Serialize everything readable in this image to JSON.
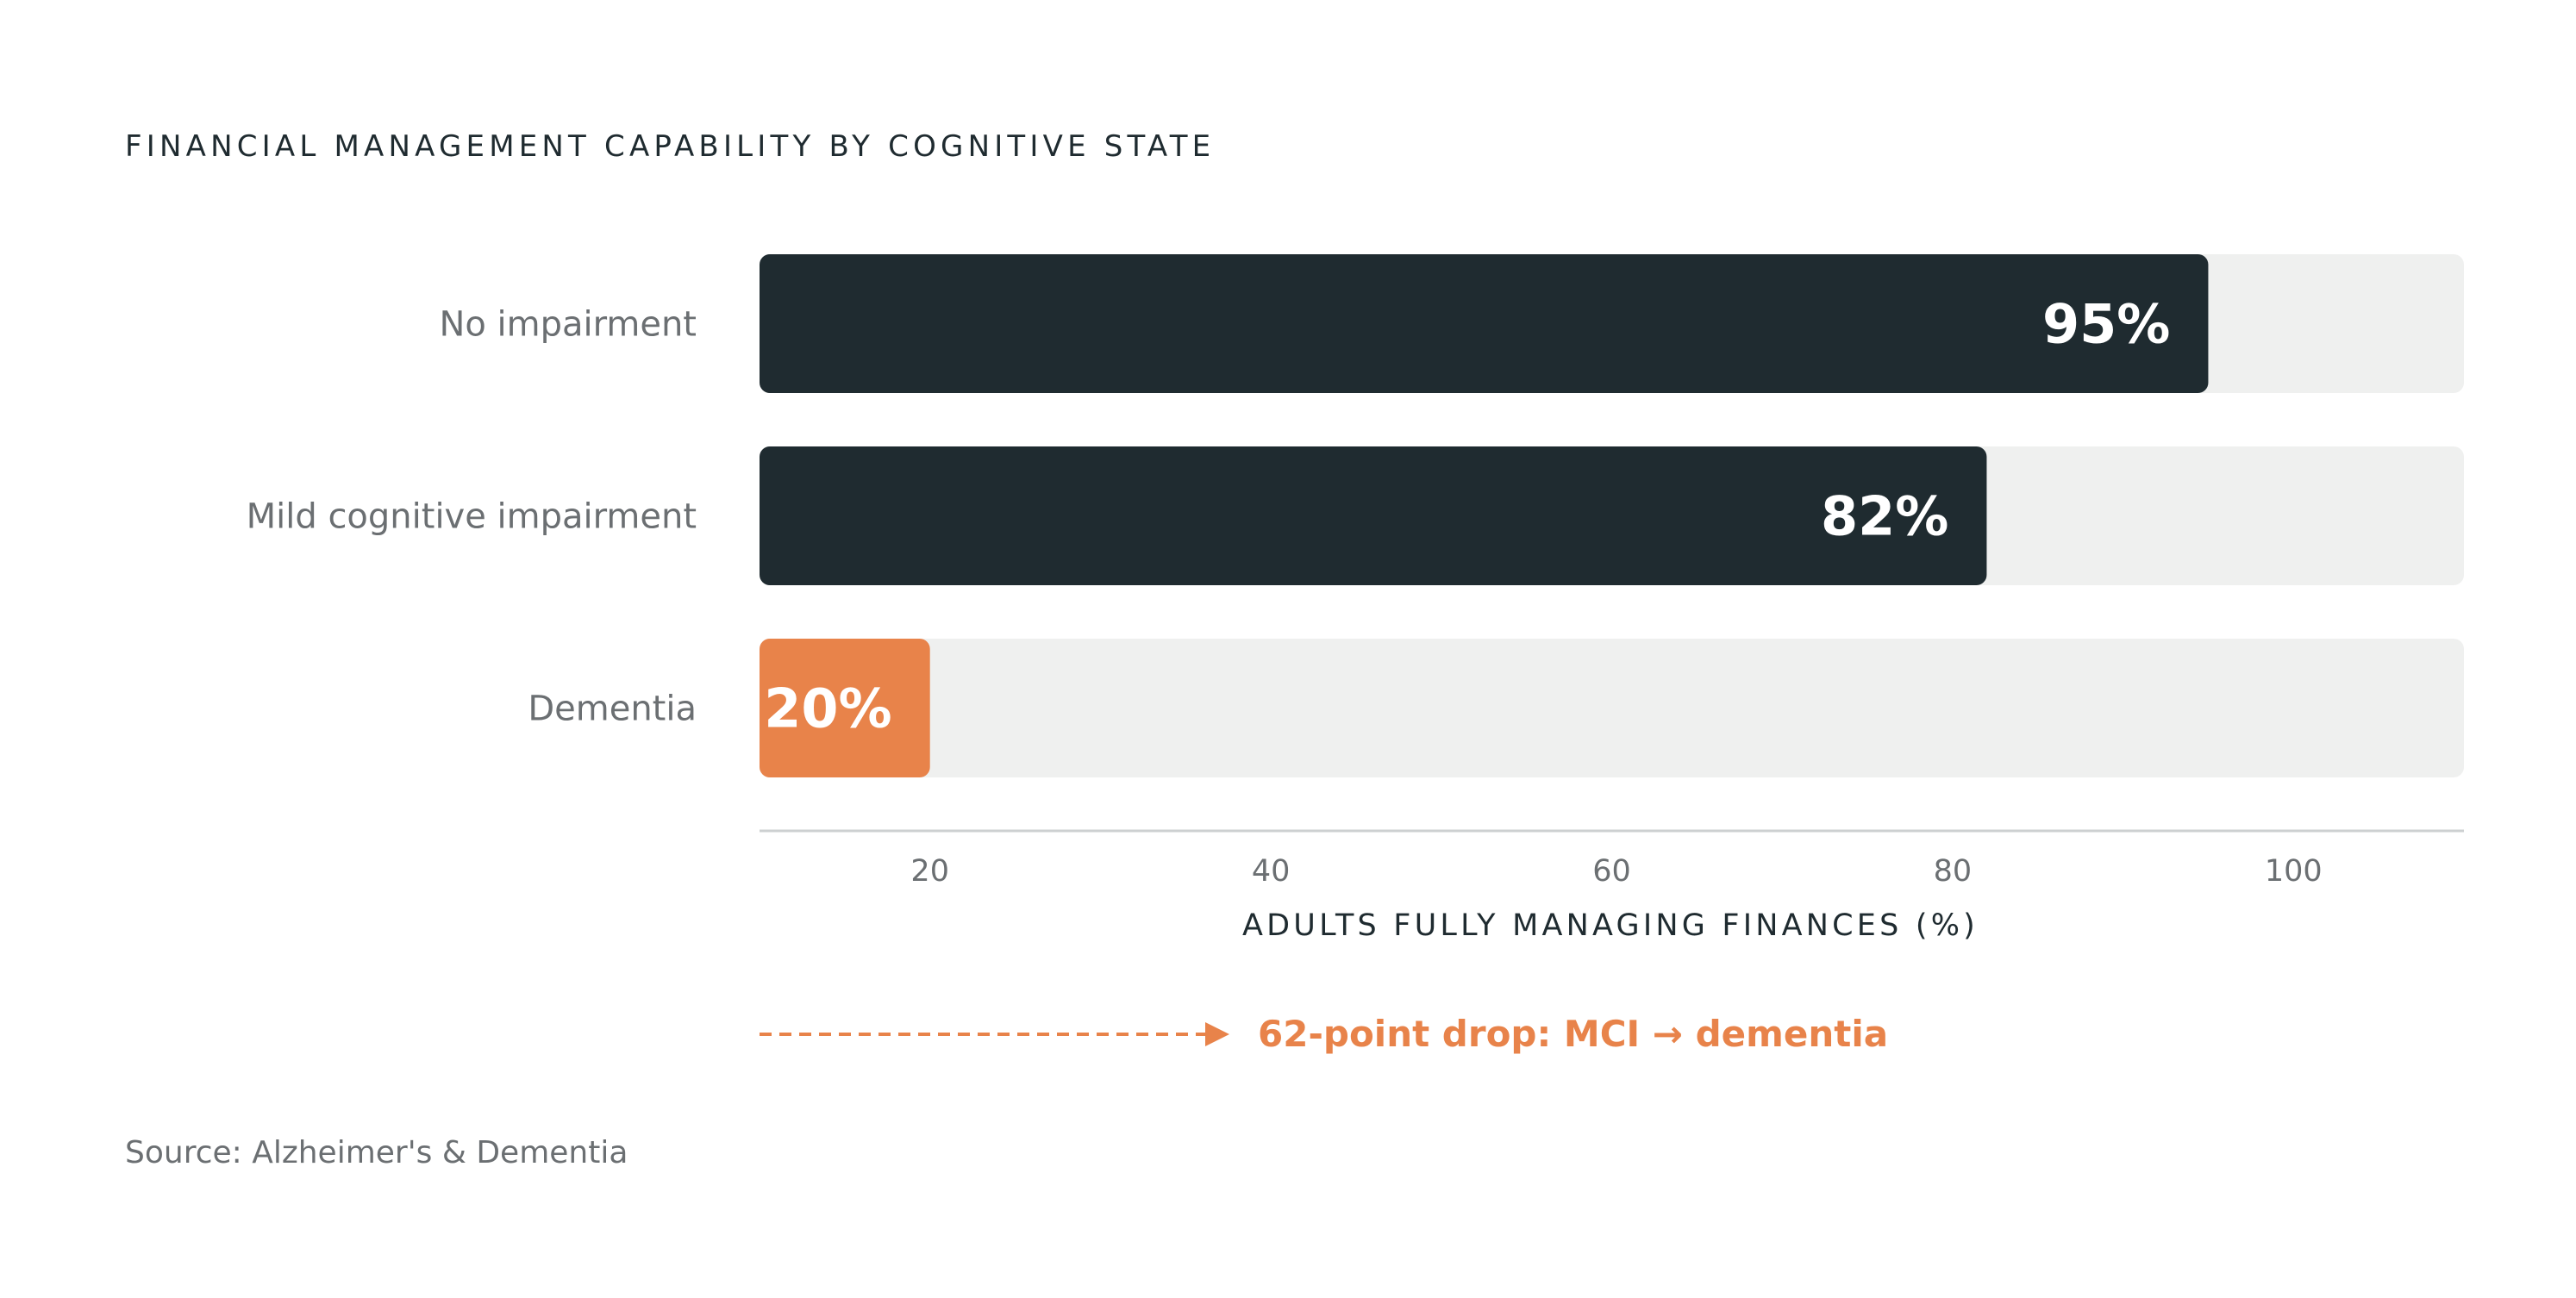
{
  "chart_data": {
    "type": "bar",
    "orientation": "horizontal",
    "title": "FINANCIAL MANAGEMENT CAPABILITY BY COGNITIVE STATE",
    "categories": [
      "No impairment",
      "Mild cognitive impairment",
      "Dementia"
    ],
    "values": [
      95,
      82,
      20
    ],
    "value_labels": [
      "95%",
      "82%",
      "20%"
    ],
    "xlabel": "ADULTS FULLY MANAGING FINANCES (%)",
    "ylabel": "",
    "xticks": [
      "20",
      "40",
      "60",
      "80",
      "100"
    ],
    "xlim": [
      10,
      110
    ],
    "grid": false,
    "colors": {
      "default_bar": "#1f2b30",
      "highlight_bar": "#e8834a",
      "track": "#eff0ef",
      "axis": "#cdd0d1"
    },
    "highlight_index": 2,
    "annotation": "62-point drop: MCI → dementia",
    "source": "Source: Alzheimer's & Dementia"
  }
}
